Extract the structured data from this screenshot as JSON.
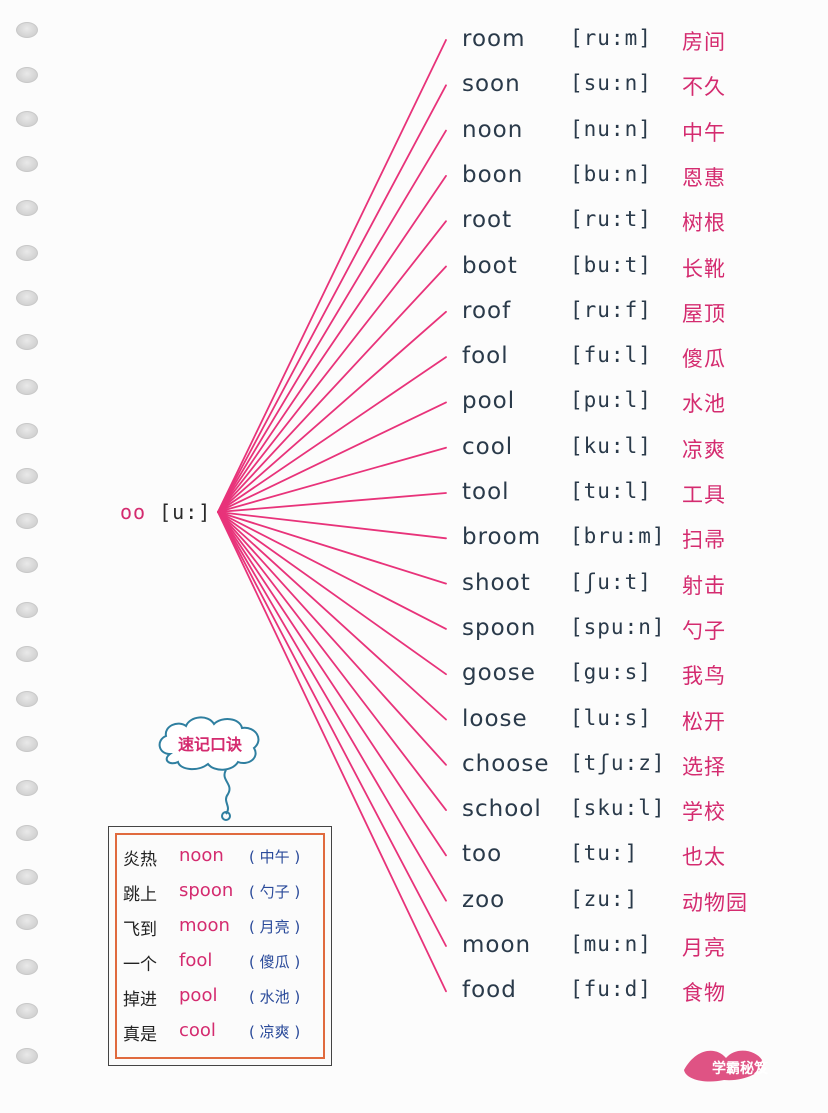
{
  "root": {
    "label": "oo",
    "phonetic": "[u:]"
  },
  "words": [
    {
      "word": "room",
      "phonetic": "[ru:m]",
      "meaning": "房间"
    },
    {
      "word": "soon",
      "phonetic": "[su:n]",
      "meaning": "不久"
    },
    {
      "word": "noon",
      "phonetic": "[nu:n]",
      "meaning": "中午"
    },
    {
      "word": "boon",
      "phonetic": "[bu:n]",
      "meaning": "恩惠"
    },
    {
      "word": "root",
      "phonetic": "[ru:t]",
      "meaning": "树根"
    },
    {
      "word": "boot",
      "phonetic": "[bu:t]",
      "meaning": "长靴"
    },
    {
      "word": "roof",
      "phonetic": "[ru:f]",
      "meaning": "屋顶"
    },
    {
      "word": "fool",
      "phonetic": "[fu:l]",
      "meaning": "傻瓜"
    },
    {
      "word": "pool",
      "phonetic": "[pu:l]",
      "meaning": "水池"
    },
    {
      "word": "cool",
      "phonetic": "[ku:l]",
      "meaning": "凉爽"
    },
    {
      "word": "tool",
      "phonetic": "[tu:l]",
      "meaning": "工具"
    },
    {
      "word": "broom",
      "phonetic": "[bru:m]",
      "meaning": "扫帚"
    },
    {
      "word": "shoot",
      "phonetic": "[ʃu:t]",
      "meaning": "射击"
    },
    {
      "word": "spoon",
      "phonetic": "[spu:n]",
      "meaning": "勺子"
    },
    {
      "word": "goose",
      "phonetic": "[gu:s]",
      "meaning": "我鸟"
    },
    {
      "word": "loose",
      "phonetic": "[lu:s]",
      "meaning": "松开"
    },
    {
      "word": "choose",
      "phonetic": "[tʃu:z]",
      "meaning": "选择"
    },
    {
      "word": "school",
      "phonetic": "[sku:l]",
      "meaning": "学校"
    },
    {
      "word": "too",
      "phonetic": "[tu:]",
      "meaning": "也太"
    },
    {
      "word": "zoo",
      "phonetic": "[zu:]",
      "meaning": "动物园"
    },
    {
      "word": "moon",
      "phonetic": "[mu:n]",
      "meaning": "月亮"
    },
    {
      "word": "food",
      "phonetic": "[fu:d]",
      "meaning": "食物"
    }
  ],
  "mnemonic": {
    "title": "速记口诀",
    "lines": [
      {
        "cn": "炎热",
        "en": "noon",
        "gloss": "( 中午 )"
      },
      {
        "cn": "跳上",
        "en": "spoon",
        "gloss": "( 勺子 )"
      },
      {
        "cn": "飞到",
        "en": "moon",
        "gloss": "( 月亮 )"
      },
      {
        "cn": "一个",
        "en": "fool",
        "gloss": "( 傻瓜 )"
      },
      {
        "cn": "掉进",
        "en": "pool",
        "gloss": "( 水池 )"
      },
      {
        "cn": "真是",
        "en": "cool",
        "gloss": "( 凉爽 )"
      }
    ]
  },
  "watermark": "学霸秘笈",
  "colors": {
    "line": "#e8337a",
    "accent": "#d42b6f",
    "ink": "#2a3a4a",
    "box_border": "#e06a3e",
    "cloud_stroke": "#2f7fa0"
  }
}
